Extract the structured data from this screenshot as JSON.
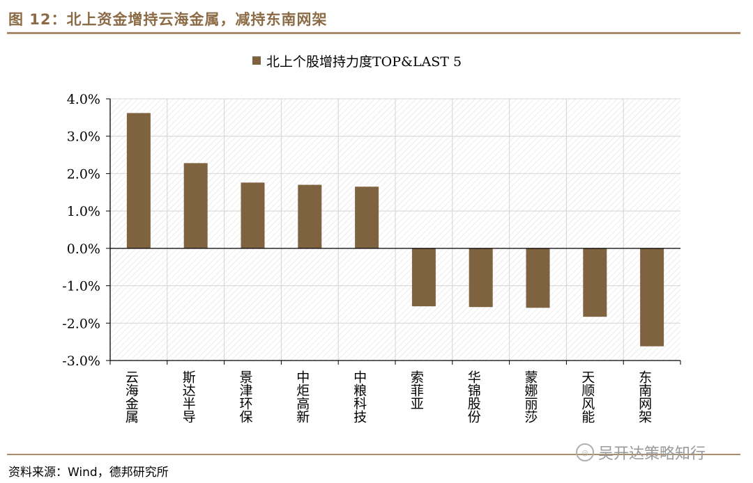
{
  "figure": {
    "title": "图 12：北上资金增持云海金属，减持东南网架",
    "source": "资料来源：Wind，德邦研究所",
    "watermark": "吴开达策略知行"
  },
  "colors": {
    "bar": "#7F6340",
    "rule": "#A88C6C",
    "title": "#8B6B45"
  },
  "chart_data": {
    "type": "bar",
    "legend": "北上个股增持力度TOP&LAST 5",
    "legend_position": "top-center",
    "categories": [
      "云海金属",
      "斯达半导",
      "景津环保",
      "中炬高新",
      "中粮科技",
      "索菲亚",
      "华锦股份",
      "蒙娜丽莎",
      "天顺风能",
      "东南网架"
    ],
    "values": [
      3.62,
      2.28,
      1.76,
      1.7,
      1.65,
      -1.55,
      -1.57,
      -1.59,
      -1.83,
      -2.62
    ],
    "ylim": [
      -3.0,
      4.0
    ],
    "yticks": [
      "4.0%",
      "3.0%",
      "2.0%",
      "1.0%",
      "0.0%",
      "-1.0%",
      "-2.0%",
      "-3.0%"
    ],
    "unit": "%",
    "grid": true
  }
}
